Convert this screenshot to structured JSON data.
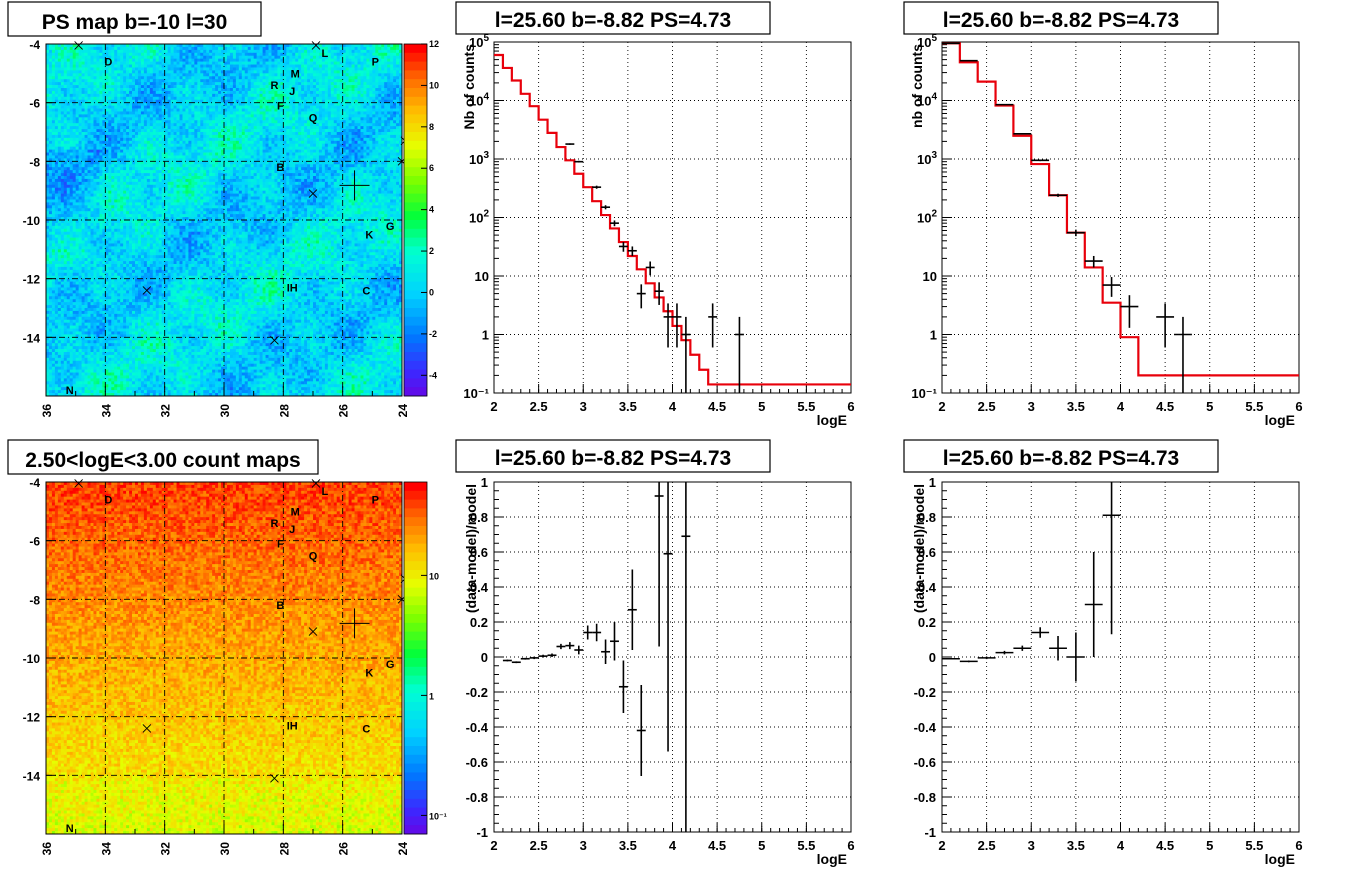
{
  "chart_data": [
    {
      "type": "heatmap",
      "title": "PS map b=-10 l=30",
      "xlabel": "",
      "ylabel": "",
      "xlim": [
        36,
        24
      ],
      "ylim": [
        -16,
        -4
      ],
      "xticks": [
        "36",
        "34",
        "32",
        "30",
        "28",
        "26",
        "24"
      ],
      "yticks": [
        "-4",
        "-6",
        "-8",
        "-10",
        "-12",
        "-14"
      ],
      "colorbar": {
        "scale": "linear",
        "range": [
          -5,
          12
        ],
        "ticks": [
          "12",
          "10",
          "8",
          "6",
          "4",
          "2",
          "0",
          "-2",
          "-4"
        ]
      },
      "grid": true,
      "sources": [
        {
          "label": "D",
          "l": 33.9,
          "b": -4.6
        },
        {
          "label": "L",
          "l": 26.6,
          "b": -4.3
        },
        {
          "label": "P",
          "l": 24.9,
          "b": -4.6
        },
        {
          "label": "M",
          "l": 27.6,
          "b": -5.0
        },
        {
          "label": "R",
          "l": 28.3,
          "b": -5.4
        },
        {
          "label": "J",
          "l": 27.7,
          "b": -5.6
        },
        {
          "label": "F",
          "l": 28.1,
          "b": -6.1
        },
        {
          "label": "Q",
          "l": 27.0,
          "b": -6.5
        },
        {
          "label": "B",
          "l": 28.1,
          "b": -8.2
        },
        {
          "label": "K",
          "l": 25.1,
          "b": -10.5
        },
        {
          "label": "G",
          "l": 24.4,
          "b": -10.2
        },
        {
          "label": "IH",
          "l": 27.7,
          "b": -12.3
        },
        {
          "label": "C",
          "l": 25.2,
          "b": -12.4
        },
        {
          "label": "N",
          "l": 35.2,
          "b": -15.8
        }
      ],
      "cross_markers": [
        [
          34.9,
          -4.05
        ],
        [
          26.9,
          -4.05
        ],
        [
          27.0,
          -9.1
        ],
        [
          32.6,
          -12.4
        ],
        [
          28.3,
          -14.1
        ],
        [
          24.0,
          -8.0
        ],
        [
          23.9,
          -7.3
        ]
      ],
      "fit_position": {
        "l": 25.6,
        "b": -8.82
      }
    },
    {
      "type": "line",
      "title": "l=25.60 b=-8.82 PS=4.73",
      "xlabel": "logE",
      "ylabel": "Nb of counts",
      "xlim": [
        2,
        6
      ],
      "ylim": [
        0.1,
        100000
      ],
      "yscale": "log",
      "xticks": [
        "2",
        "2.5",
        "3",
        "3.5",
        "4",
        "4.5",
        "5",
        "5.5",
        "6"
      ],
      "yticks": [
        "10",
        "1",
        "10⁻¹"
      ],
      "yticks_pow": [
        {
          "base": "10",
          "exp": "5"
        },
        {
          "base": "10",
          "exp": "4"
        },
        {
          "base": "10",
          "exp": "3"
        },
        {
          "base": "10",
          "exp": "2"
        }
      ],
      "grid": true,
      "model_steps": {
        "edges": [
          2.0,
          2.1,
          2.2,
          2.3,
          2.4,
          2.5,
          2.6,
          2.7,
          2.8,
          2.9,
          3.0,
          3.1,
          3.2,
          3.3,
          3.4,
          3.5,
          3.6,
          3.7,
          3.8,
          3.9,
          4.0,
          4.1,
          4.2,
          4.3,
          4.4,
          6.0
        ],
        "values": [
          60000,
          36000,
          22000,
          13000,
          8000,
          4700,
          2800,
          1600,
          950,
          560,
          330,
          190,
          110,
          65,
          38,
          22,
          13,
          7.5,
          4.3,
          2.5,
          1.4,
          0.8,
          0.45,
          0.25,
          0.14
        ]
      },
      "data_points": [
        {
          "x": 2.85,
          "y": 1800,
          "xerr": 0.05,
          "ylo": 1750,
          "yhi": 1850
        },
        {
          "x": 2.95,
          "y": 900,
          "xerr": 0.05,
          "ylo": 870,
          "yhi": 930
        },
        {
          "x": 3.15,
          "y": 330,
          "xerr": 0.05,
          "ylo": 310,
          "yhi": 350
        },
        {
          "x": 3.25,
          "y": 150,
          "xerr": 0.05,
          "ylo": 138,
          "yhi": 162
        },
        {
          "x": 3.35,
          "y": 80,
          "xerr": 0.05,
          "ylo": 71,
          "yhi": 89
        },
        {
          "x": 3.45,
          "y": 32,
          "xerr": 0.05,
          "ylo": 26,
          "yhi": 38
        },
        {
          "x": 3.55,
          "y": 27,
          "xerr": 0.05,
          "ylo": 22,
          "yhi": 32
        },
        {
          "x": 3.65,
          "y": 5,
          "xerr": 0.05,
          "ylo": 2.8,
          "yhi": 7.2
        },
        {
          "x": 3.75,
          "y": 14,
          "xerr": 0.05,
          "ylo": 10.3,
          "yhi": 17.7
        },
        {
          "x": 3.85,
          "y": 5.5,
          "xerr": 0.05,
          "ylo": 3.2,
          "yhi": 7.8
        },
        {
          "x": 3.95,
          "y": 2,
          "xerr": 0.05,
          "ylo": 0.6,
          "yhi": 3.4
        },
        {
          "x": 4.05,
          "y": 2,
          "xerr": 0.05,
          "ylo": 0.6,
          "yhi": 3.4
        },
        {
          "x": 4.15,
          "y": 1,
          "xerr": 0.05,
          "ylo": 0.1,
          "yhi": 2.0
        },
        {
          "x": 4.45,
          "y": 2,
          "xerr": 0.05,
          "ylo": 0.6,
          "yhi": 3.4
        },
        {
          "x": 4.75,
          "y": 1,
          "xerr": 0.05,
          "ylo": 0.1,
          "yhi": 2.0
        }
      ]
    },
    {
      "type": "line",
      "title": "l=25.60 b=-8.82 PS=4.73",
      "xlabel": "logE",
      "ylabel": "nb of counts",
      "xlim": [
        2,
        6
      ],
      "ylim": [
        0.1,
        100000
      ],
      "yscale": "log",
      "xticks": [
        "2",
        "2.5",
        "3",
        "3.5",
        "4",
        "4.5",
        "5",
        "5.5",
        "6"
      ],
      "yticks": [
        "10",
        "1",
        "10⁻¹"
      ],
      "yticks_pow": [
        {
          "base": "10",
          "exp": "5"
        },
        {
          "base": "10",
          "exp": "4"
        },
        {
          "base": "10",
          "exp": "3"
        },
        {
          "base": "10",
          "exp": "2"
        }
      ],
      "grid": true,
      "model_steps": {
        "edges": [
          2.0,
          2.2,
          2.4,
          2.6,
          2.8,
          3.0,
          3.2,
          3.4,
          3.6,
          3.8,
          4.0,
          4.2,
          6.0
        ],
        "values": [
          95000,
          45000,
          21000,
          8200,
          2500,
          820,
          240,
          55,
          14,
          3.5,
          0.9,
          0.2
        ]
      },
      "data_points": [
        {
          "x": 2.1,
          "y": 95000,
          "xerr": 0.1,
          "ylo": 94000,
          "yhi": 96000
        },
        {
          "x": 2.3,
          "y": 48000,
          "xerr": 0.1,
          "ylo": 47500,
          "yhi": 48500
        },
        {
          "x": 2.7,
          "y": 8500,
          "xerr": 0.1,
          "ylo": 8400,
          "yhi": 8600
        },
        {
          "x": 2.9,
          "y": 2700,
          "xerr": 0.1,
          "ylo": 2650,
          "yhi": 2750
        },
        {
          "x": 3.1,
          "y": 950,
          "xerr": 0.1,
          "ylo": 920,
          "yhi": 980
        },
        {
          "x": 3.3,
          "y": 240,
          "xerr": 0.1,
          "ylo": 225,
          "yhi": 255
        },
        {
          "x": 3.5,
          "y": 55,
          "xerr": 0.1,
          "ylo": 48,
          "yhi": 62
        },
        {
          "x": 3.7,
          "y": 18,
          "xerr": 0.1,
          "ylo": 14,
          "yhi": 22
        },
        {
          "x": 3.9,
          "y": 7,
          "xerr": 0.1,
          "ylo": 4.4,
          "yhi": 9.6
        },
        {
          "x": 4.1,
          "y": 3,
          "xerr": 0.1,
          "ylo": 1.3,
          "yhi": 4.7
        },
        {
          "x": 4.5,
          "y": 2,
          "xerr": 0.1,
          "ylo": 0.6,
          "yhi": 3.4
        },
        {
          "x": 4.7,
          "y": 1,
          "xerr": 0.1,
          "ylo": 0.1,
          "yhi": 2.0
        }
      ]
    },
    {
      "type": "heatmap",
      "title": "2.50<logE<3.00 count maps",
      "xlabel": "",
      "ylabel": "",
      "xlim": [
        36,
        24
      ],
      "ylim": [
        -16,
        -4
      ],
      "xticks": [
        "36",
        "34",
        "32",
        "30",
        "28",
        "26",
        "24"
      ],
      "yticks": [
        "-4",
        "-6",
        "-8",
        "-10",
        "-12",
        "-14"
      ],
      "colorbar": {
        "scale": "log",
        "range": [
          0.07,
          60
        ],
        "ticks": [
          "10",
          "1",
          "10⁻¹"
        ]
      },
      "grid": true,
      "sources_same_as_first_map": true,
      "fit_position": {
        "l": 25.6,
        "b": -8.82
      }
    },
    {
      "type": "scatter",
      "title": "l=25.60 b=-8.82 PS=4.73",
      "xlabel": "logE",
      "ylabel": "(data-model)/model",
      "xlim": [
        2,
        6
      ],
      "ylim": [
        -1,
        1
      ],
      "xticks": [
        "2",
        "2.5",
        "3",
        "3.5",
        "4",
        "4.5",
        "5",
        "5.5",
        "6"
      ],
      "yticks": [
        "1",
        "0.8",
        "0.6",
        "0.4",
        "0.2",
        "0",
        "-0.2",
        "-0.4",
        "-0.6",
        "-0.8",
        "-1"
      ],
      "grid": true,
      "data_points": [
        {
          "x": 2.15,
          "y": -0.02,
          "xerr": 0.05,
          "ylo": -0.025,
          "yhi": -0.015
        },
        {
          "x": 2.25,
          "y": -0.03,
          "xerr": 0.05,
          "ylo": -0.035,
          "yhi": -0.025
        },
        {
          "x": 2.35,
          "y": -0.01,
          "xerr": 0.05,
          "ylo": -0.015,
          "yhi": -0.005
        },
        {
          "x": 2.45,
          "y": -0.005,
          "xerr": 0.05,
          "ylo": -0.012,
          "yhi": 0.002
        },
        {
          "x": 2.55,
          "y": 0.005,
          "xerr": 0.05,
          "ylo": -0.003,
          "yhi": 0.013
        },
        {
          "x": 2.65,
          "y": 0.01,
          "xerr": 0.05,
          "ylo": 0.0,
          "yhi": 0.02
        },
        {
          "x": 2.75,
          "y": 0.06,
          "xerr": 0.05,
          "ylo": 0.045,
          "yhi": 0.075
        },
        {
          "x": 2.85,
          "y": 0.065,
          "xerr": 0.05,
          "ylo": 0.045,
          "yhi": 0.085
        },
        {
          "x": 2.95,
          "y": 0.04,
          "xerr": 0.05,
          "ylo": 0.015,
          "yhi": 0.065
        },
        {
          "x": 3.05,
          "y": 0.14,
          "xerr": 0.05,
          "ylo": 0.1,
          "yhi": 0.18
        },
        {
          "x": 3.15,
          "y": 0.14,
          "xerr": 0.05,
          "ylo": 0.09,
          "yhi": 0.19
        },
        {
          "x": 3.25,
          "y": 0.03,
          "xerr": 0.05,
          "ylo": -0.04,
          "yhi": 0.1
        },
        {
          "x": 3.35,
          "y": 0.09,
          "xerr": 0.05,
          "ylo": -0.02,
          "yhi": 0.2
        },
        {
          "x": 3.45,
          "y": -0.17,
          "xerr": 0.05,
          "ylo": -0.32,
          "yhi": -0.02
        },
        {
          "x": 3.55,
          "y": 0.27,
          "xerr": 0.05,
          "ylo": 0.04,
          "yhi": 0.5
        },
        {
          "x": 3.65,
          "y": -0.42,
          "xerr": 0.05,
          "ylo": -0.68,
          "yhi": -0.16
        },
        {
          "x": 3.85,
          "y": 0.92,
          "xerr": 0.05,
          "ylo": 0.06,
          "yhi": 1.0
        },
        {
          "x": 3.95,
          "y": 0.59,
          "xerr": 0.05,
          "ylo": -0.54,
          "yhi": 1.0
        },
        {
          "x": 4.15,
          "y": 0.69,
          "xerr": 0.05,
          "ylo": -1.0,
          "yhi": 1.0
        }
      ]
    },
    {
      "type": "scatter",
      "title": "l=25.60 b=-8.82 PS=4.73",
      "xlabel": "logE",
      "ylabel": "(data-model)/model",
      "xlim": [
        2,
        6
      ],
      "ylim": [
        -1,
        1
      ],
      "xticks": [
        "2",
        "2.5",
        "3",
        "3.5",
        "4",
        "4.5",
        "5",
        "5.5",
        "6"
      ],
      "yticks": [
        "1",
        "0.8",
        "0.6",
        "0.4",
        "0.2",
        "0",
        "-0.2",
        "-0.4",
        "-0.6",
        "-0.8",
        "-1"
      ],
      "grid": true,
      "data_points": [
        {
          "x": 2.1,
          "y": -0.01,
          "xerr": 0.1,
          "ylo": -0.013,
          "yhi": -0.007
        },
        {
          "x": 2.3,
          "y": -0.025,
          "xerr": 0.1,
          "ylo": -0.03,
          "yhi": -0.02
        },
        {
          "x": 2.5,
          "y": -0.005,
          "xerr": 0.1,
          "ylo": -0.012,
          "yhi": 0.002
        },
        {
          "x": 2.7,
          "y": 0.025,
          "xerr": 0.1,
          "ylo": 0.015,
          "yhi": 0.035
        },
        {
          "x": 2.9,
          "y": 0.05,
          "xerr": 0.1,
          "ylo": 0.035,
          "yhi": 0.065
        },
        {
          "x": 3.1,
          "y": 0.14,
          "xerr": 0.1,
          "ylo": 0.11,
          "yhi": 0.17
        },
        {
          "x": 3.3,
          "y": 0.05,
          "xerr": 0.1,
          "ylo": -0.02,
          "yhi": 0.12
        },
        {
          "x": 3.5,
          "y": 0.0,
          "xerr": 0.1,
          "ylo": -0.14,
          "yhi": 0.14
        },
        {
          "x": 3.7,
          "y": 0.3,
          "xerr": 0.1,
          "ylo": 0.0,
          "yhi": 0.6
        },
        {
          "x": 3.9,
          "y": 0.81,
          "xerr": 0.1,
          "ylo": 0.13,
          "yhi": 1.0
        }
      ]
    }
  ]
}
